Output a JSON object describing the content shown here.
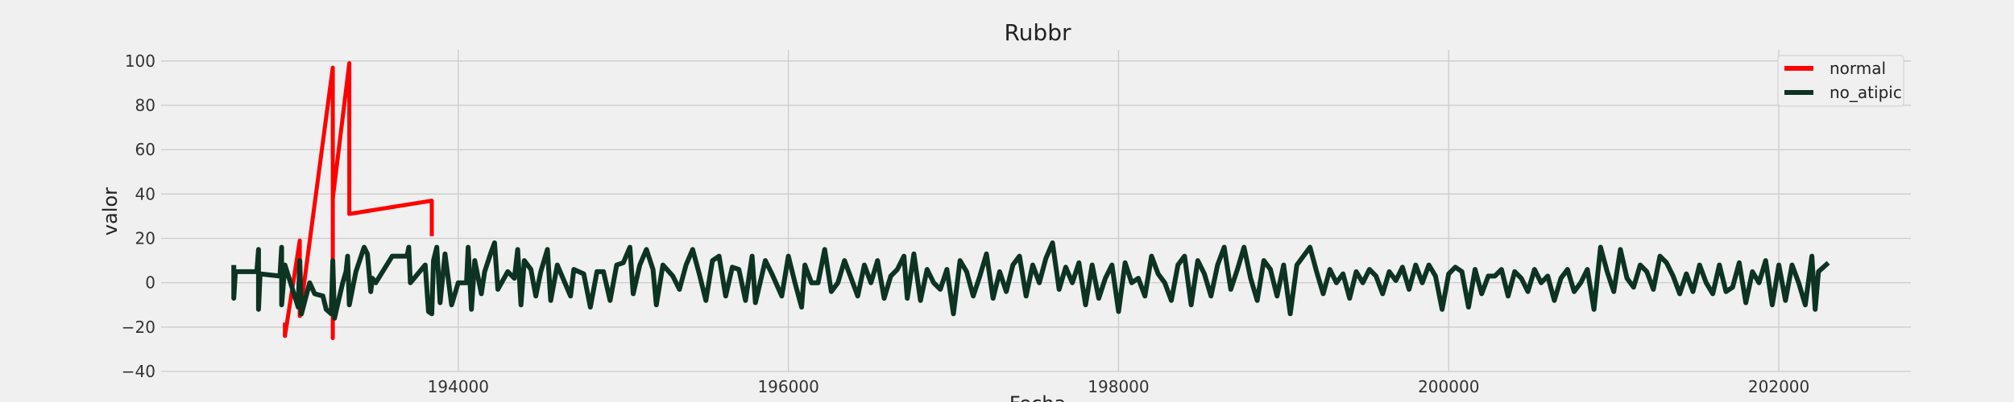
{
  "chart_data": {
    "type": "line",
    "title": "Rubbr",
    "xlabel": "Fecha",
    "ylabel": "valor",
    "xlim": [
      192200,
      202800
    ],
    "ylim": [
      -40,
      105
    ],
    "xticks": [
      194000,
      196000,
      198000,
      200000,
      202000
    ],
    "xtick_labels": [
      "194000",
      "196000",
      "198000",
      "200000",
      "202000"
    ],
    "yticks": [
      -40,
      -20,
      0,
      20,
      40,
      60,
      80,
      100
    ],
    "ytick_labels": [
      "−40",
      "−20",
      "0",
      "20",
      "40",
      "60",
      "80",
      "100"
    ],
    "grid": true,
    "legend_position": "top-right",
    "series": [
      {
        "name": "normal",
        "color": "#ff0000",
        "points": [
          [
            192950,
            -18
          ],
          [
            192950,
            -24
          ],
          [
            193040,
            19
          ],
          [
            193040,
            -15
          ],
          [
            193240,
            97
          ],
          [
            193240,
            -25
          ],
          [
            193240,
            38
          ],
          [
            193340,
            99
          ],
          [
            193340,
            31
          ],
          [
            193840,
            37
          ],
          [
            193840,
            21
          ]
        ]
      },
      {
        "name": "no_atipic",
        "color": "#0d3322",
        "points": [
          [
            192640,
            8
          ],
          [
            192640,
            -7
          ],
          [
            192650,
            5
          ],
          [
            192780,
            5
          ],
          [
            192790,
            15
          ],
          [
            192790,
            -12
          ],
          [
            192800,
            4
          ],
          [
            192920,
            3
          ],
          [
            192930,
            16
          ],
          [
            192930,
            -10
          ],
          [
            192950,
            8
          ],
          [
            193030,
            -11
          ],
          [
            193040,
            10
          ],
          [
            193050,
            -14
          ],
          [
            193100,
            0
          ],
          [
            193130,
            -5
          ],
          [
            193180,
            -6
          ],
          [
            193200,
            -12
          ],
          [
            193230,
            -14
          ],
          [
            193240,
            10
          ],
          [
            193250,
            -16
          ],
          [
            193300,
            0
          ],
          [
            193320,
            5
          ],
          [
            193330,
            12
          ],
          [
            193340,
            -10
          ],
          [
            193380,
            5
          ],
          [
            193430,
            16
          ],
          [
            193450,
            13
          ],
          [
            193470,
            -4
          ],
          [
            193480,
            2
          ],
          [
            193500,
            0
          ],
          [
            193600,
            12
          ],
          [
            193690,
            12
          ],
          [
            193700,
            16
          ],
          [
            193710,
            0
          ],
          [
            193800,
            8
          ],
          [
            193820,
            -13
          ],
          [
            193840,
            -14
          ],
          [
            193850,
            10
          ],
          [
            193870,
            16
          ],
          [
            193890,
            -9
          ],
          [
            193920,
            13
          ],
          [
            193960,
            -10
          ],
          [
            194000,
            0
          ],
          [
            194050,
            0
          ],
          [
            194060,
            16
          ],
          [
            194080,
            -12
          ],
          [
            194100,
            10
          ],
          [
            194140,
            -5
          ],
          [
            194160,
            5
          ],
          [
            194200,
            14
          ],
          [
            194220,
            18
          ],
          [
            194240,
            -3
          ],
          [
            194300,
            5
          ],
          [
            194340,
            2
          ],
          [
            194360,
            15
          ],
          [
            194380,
            -10
          ],
          [
            194400,
            10
          ],
          [
            194440,
            6
          ],
          [
            194470,
            -6
          ],
          [
            194500,
            5
          ],
          [
            194540,
            15
          ],
          [
            194560,
            -8
          ],
          [
            194600,
            8
          ],
          [
            194640,
            1
          ],
          [
            194680,
            -6
          ],
          [
            194700,
            6
          ],
          [
            194760,
            4
          ],
          [
            194800,
            -11
          ],
          [
            194840,
            5
          ],
          [
            194880,
            5
          ],
          [
            194920,
            -8
          ],
          [
            194960,
            8
          ],
          [
            195000,
            9
          ],
          [
            195040,
            16
          ],
          [
            195060,
            -5
          ],
          [
            195100,
            8
          ],
          [
            195140,
            15
          ],
          [
            195180,
            6
          ],
          [
            195200,
            -10
          ],
          [
            195240,
            8
          ],
          [
            195300,
            3
          ],
          [
            195340,
            -3
          ],
          [
            195380,
            8
          ],
          [
            195420,
            15
          ],
          [
            195460,
            4
          ],
          [
            195500,
            -8
          ],
          [
            195540,
            10
          ],
          [
            195580,
            12
          ],
          [
            195620,
            -6
          ],
          [
            195660,
            7
          ],
          [
            195700,
            6
          ],
          [
            195740,
            -8
          ],
          [
            195780,
            12
          ],
          [
            195800,
            -9
          ],
          [
            195860,
            10
          ],
          [
            195900,
            4
          ],
          [
            195960,
            -6
          ],
          [
            196000,
            12
          ],
          [
            196040,
            0
          ],
          [
            196080,
            -11
          ],
          [
            196100,
            8
          ],
          [
            196140,
            0
          ],
          [
            196180,
            0
          ],
          [
            196220,
            15
          ],
          [
            196260,
            -4
          ],
          [
            196300,
            0
          ],
          [
            196340,
            10
          ],
          [
            196380,
            2
          ],
          [
            196420,
            -6
          ],
          [
            196460,
            8
          ],
          [
            196500,
            0
          ],
          [
            196540,
            10
          ],
          [
            196580,
            -7
          ],
          [
            196620,
            3
          ],
          [
            196660,
            6
          ],
          [
            196700,
            12
          ],
          [
            196720,
            -7
          ],
          [
            196760,
            13
          ],
          [
            196800,
            -8
          ],
          [
            196840,
            6
          ],
          [
            196880,
            0
          ],
          [
            196920,
            -3
          ],
          [
            196960,
            6
          ],
          [
            197000,
            -14
          ],
          [
            197040,
            10
          ],
          [
            197080,
            5
          ],
          [
            197120,
            -6
          ],
          [
            197160,
            3
          ],
          [
            197200,
            13
          ],
          [
            197240,
            -7
          ],
          [
            197280,
            5
          ],
          [
            197320,
            -4
          ],
          [
            197360,
            8
          ],
          [
            197400,
            12
          ],
          [
            197440,
            -6
          ],
          [
            197480,
            8
          ],
          [
            197520,
            0
          ],
          [
            197560,
            11
          ],
          [
            197600,
            18
          ],
          [
            197640,
            -3
          ],
          [
            197680,
            7
          ],
          [
            197720,
            0
          ],
          [
            197760,
            9
          ],
          [
            197800,
            -10
          ],
          [
            197840,
            8
          ],
          [
            197880,
            -7
          ],
          [
            197920,
            2
          ],
          [
            197960,
            8
          ],
          [
            198000,
            -13
          ],
          [
            198040,
            9
          ],
          [
            198080,
            0
          ],
          [
            198120,
            2
          ],
          [
            198160,
            -6
          ],
          [
            198200,
            12
          ],
          [
            198240,
            4
          ],
          [
            198280,
            0
          ],
          [
            198320,
            -8
          ],
          [
            198360,
            8
          ],
          [
            198400,
            12
          ],
          [
            198440,
            -10
          ],
          [
            198480,
            10
          ],
          [
            198520,
            4
          ],
          [
            198560,
            -6
          ],
          [
            198600,
            8
          ],
          [
            198640,
            16
          ],
          [
            198680,
            -3
          ],
          [
            198720,
            6
          ],
          [
            198760,
            16
          ],
          [
            198800,
            2
          ],
          [
            198840,
            -8
          ],
          [
            198880,
            10
          ],
          [
            198920,
            6
          ],
          [
            198960,
            -6
          ],
          [
            199000,
            8
          ],
          [
            199040,
            -14
          ],
          [
            199080,
            8
          ],
          [
            199120,
            12
          ],
          [
            199160,
            16
          ],
          [
            199200,
            5
          ],
          [
            199240,
            -5
          ],
          [
            199280,
            6
          ],
          [
            199320,
            0
          ],
          [
            199360,
            4
          ],
          [
            199400,
            -7
          ],
          [
            199440,
            5
          ],
          [
            199480,
            0
          ],
          [
            199520,
            6
          ],
          [
            199560,
            3
          ],
          [
            199600,
            -5
          ],
          [
            199640,
            5
          ],
          [
            199680,
            1
          ],
          [
            199720,
            7
          ],
          [
            199760,
            -3
          ],
          [
            199800,
            8
          ],
          [
            199840,
            0
          ],
          [
            199880,
            8
          ],
          [
            199920,
            3
          ],
          [
            199960,
            -12
          ],
          [
            200000,
            4
          ],
          [
            200040,
            7
          ],
          [
            200080,
            5
          ],
          [
            200120,
            -11
          ],
          [
            200160,
            6
          ],
          [
            200200,
            -5
          ],
          [
            200240,
            3
          ],
          [
            200280,
            3
          ],
          [
            200320,
            6
          ],
          [
            200360,
            -6
          ],
          [
            200400,
            5
          ],
          [
            200440,
            2
          ],
          [
            200480,
            -4
          ],
          [
            200520,
            6
          ],
          [
            200560,
            0
          ],
          [
            200600,
            3
          ],
          [
            200640,
            -8
          ],
          [
            200680,
            2
          ],
          [
            200720,
            6
          ],
          [
            200760,
            -4
          ],
          [
            200800,
            0
          ],
          [
            200840,
            6
          ],
          [
            200880,
            -12
          ],
          [
            200920,
            16
          ],
          [
            200960,
            5
          ],
          [
            201000,
            -4
          ],
          [
            201040,
            15
          ],
          [
            201080,
            2
          ],
          [
            201120,
            -2
          ],
          [
            201160,
            8
          ],
          [
            201200,
            5
          ],
          [
            201240,
            -3
          ],
          [
            201280,
            12
          ],
          [
            201320,
            9
          ],
          [
            201360,
            3
          ],
          [
            201400,
            -5
          ],
          [
            201440,
            4
          ],
          [
            201480,
            -4
          ],
          [
            201520,
            8
          ],
          [
            201560,
            0
          ],
          [
            201600,
            -5
          ],
          [
            201640,
            8
          ],
          [
            201680,
            -4
          ],
          [
            201720,
            -2
          ],
          [
            201760,
            9
          ],
          [
            201800,
            -9
          ],
          [
            201840,
            5
          ],
          [
            201880,
            0
          ],
          [
            201920,
            10
          ],
          [
            201960,
            -10
          ],
          [
            202000,
            8
          ],
          [
            202040,
            -8
          ],
          [
            202080,
            8
          ],
          [
            202120,
            0
          ],
          [
            202160,
            -10
          ],
          [
            202200,
            12
          ],
          [
            202220,
            -12
          ],
          [
            202240,
            5
          ],
          [
            202300,
            9
          ]
        ]
      }
    ]
  }
}
